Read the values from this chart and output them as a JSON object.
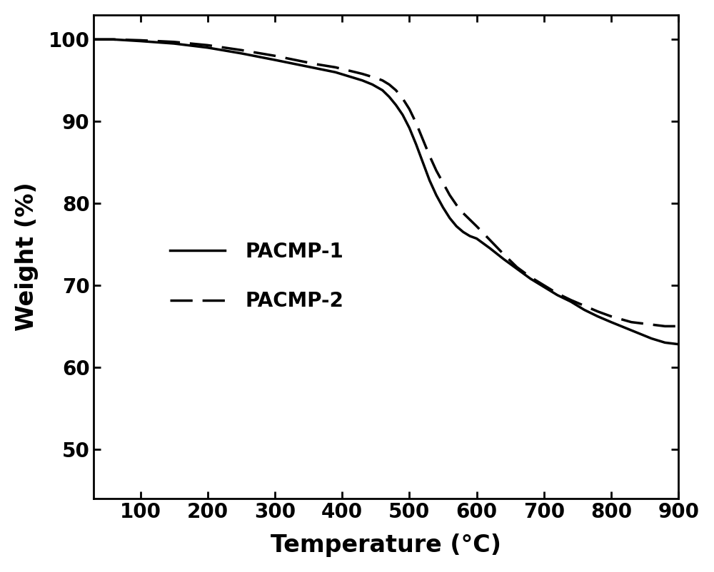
{
  "title": "",
  "xlabel": "Temperature (°C)",
  "ylabel": "Weight (%)",
  "xlim": [
    30,
    900
  ],
  "ylim": [
    44,
    103
  ],
  "xticks": [
    100,
    200,
    300,
    400,
    500,
    600,
    700,
    800,
    900
  ],
  "yticks": [
    50,
    60,
    70,
    80,
    90,
    100
  ],
  "background_color": "#ffffff",
  "line_color": "#000000",
  "line_width": 2.5,
  "legend_labels": [
    "PACMP-1",
    "PACMP-2"
  ],
  "pacmp1_x": [
    30,
    60,
    100,
    150,
    200,
    250,
    300,
    330,
    360,
    390,
    410,
    430,
    445,
    460,
    470,
    480,
    490,
    500,
    510,
    520,
    530,
    540,
    550,
    560,
    570,
    580,
    590,
    600,
    620,
    640,
    660,
    680,
    700,
    720,
    740,
    760,
    780,
    800,
    830,
    860,
    880,
    900
  ],
  "pacmp1_y": [
    100.0,
    100.0,
    99.8,
    99.5,
    99.0,
    98.3,
    97.5,
    97.0,
    96.5,
    96.0,
    95.5,
    95.0,
    94.5,
    93.8,
    93.0,
    92.0,
    90.8,
    89.2,
    87.2,
    85.0,
    82.8,
    81.0,
    79.5,
    78.2,
    77.2,
    76.5,
    76.0,
    75.7,
    74.5,
    73.2,
    72.0,
    70.8,
    69.8,
    68.8,
    68.0,
    67.0,
    66.2,
    65.5,
    64.5,
    63.5,
    63.0,
    62.8
  ],
  "pacmp2_x": [
    30,
    60,
    100,
    150,
    200,
    250,
    300,
    330,
    360,
    390,
    410,
    430,
    450,
    460,
    470,
    480,
    490,
    500,
    510,
    520,
    530,
    540,
    550,
    560,
    570,
    580,
    590,
    600,
    620,
    640,
    660,
    680,
    700,
    720,
    740,
    760,
    780,
    800,
    830,
    860,
    880,
    900
  ],
  "pacmp2_y": [
    100.0,
    100.0,
    99.9,
    99.7,
    99.3,
    98.7,
    98.0,
    97.5,
    97.0,
    96.6,
    96.2,
    95.8,
    95.3,
    95.0,
    94.5,
    93.8,
    92.8,
    91.5,
    89.8,
    87.8,
    85.8,
    84.0,
    82.5,
    81.0,
    79.8,
    78.8,
    78.0,
    77.2,
    75.5,
    73.8,
    72.2,
    71.0,
    70.0,
    69.0,
    68.2,
    67.5,
    66.8,
    66.2,
    65.5,
    65.2,
    65.0,
    65.0
  ]
}
